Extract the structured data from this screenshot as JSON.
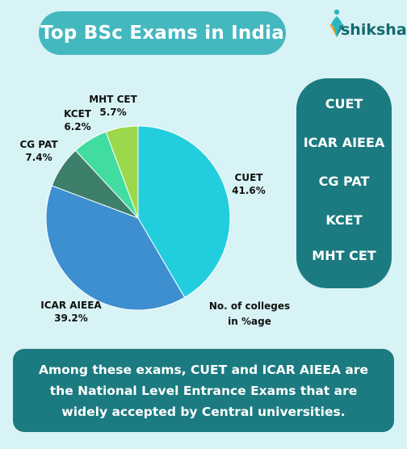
{
  "header": {
    "title": "Top BSc Exams in India",
    "brand": "shiksha"
  },
  "chart_data": {
    "type": "pie",
    "title": "Top BSc Exams in India",
    "note": "No. of colleges in %age",
    "categories": [
      "CUET",
      "ICAR AIEEA",
      "CG PAT",
      "KCET",
      "MHT CET"
    ],
    "values": [
      41.6,
      39.2,
      7.4,
      6.2,
      5.7
    ],
    "value_labels": [
      "41.6%",
      "39.2%",
      "7.4%",
      "6.2%",
      "5.7%"
    ],
    "colors": [
      "#22cedd",
      "#3d8fd0",
      "#3d7f6a",
      "#40dca0",
      "#9bd84b"
    ]
  },
  "legend": {
    "items": [
      "CUET",
      "ICAR AIEEA",
      "CG PAT",
      "KCET",
      "MHT CET"
    ]
  },
  "footer": {
    "text": "Among these exams, CUET and ICAR AIEEA are the National Level Entrance Exams that are widely accepted by Central universities."
  },
  "colors": {
    "background": "#d8f3f5",
    "title_pill": "#44b8bf",
    "panel": "#1b7b80",
    "brand": "#136a70"
  }
}
